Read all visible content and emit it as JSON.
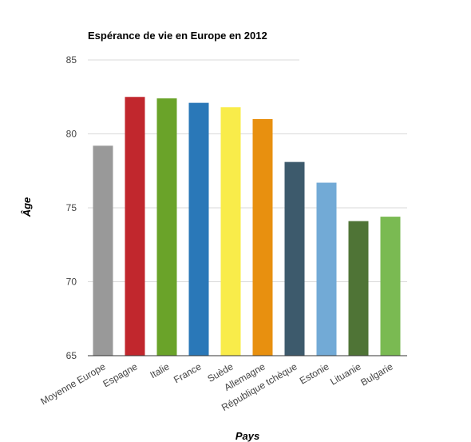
{
  "chart_data": {
    "type": "bar",
    "title": "Espérance de vie en Europe en 2012",
    "xlabel": "Pays",
    "ylabel": "Âge",
    "ylim": [
      65,
      85
    ],
    "yticks": [
      65,
      70,
      75,
      80,
      85
    ],
    "grid": true,
    "legend": "none",
    "categories": [
      "Moyenne Europe",
      "Espagne",
      "Italie",
      "France",
      "Suède",
      "Allemagne",
      "République tchèque",
      "Estonie",
      "Lituanie",
      "Bulgarie"
    ],
    "values": [
      79.2,
      82.5,
      82.4,
      82.1,
      81.8,
      81.0,
      78.1,
      76.7,
      74.1,
      74.4
    ],
    "colors": [
      "#999999",
      "#c1272d",
      "#6aa329",
      "#2a78b8",
      "#f9ec4a",
      "#e8900f",
      "#3d5a6c",
      "#72aad6",
      "#4f7436",
      "#7aba52"
    ]
  }
}
